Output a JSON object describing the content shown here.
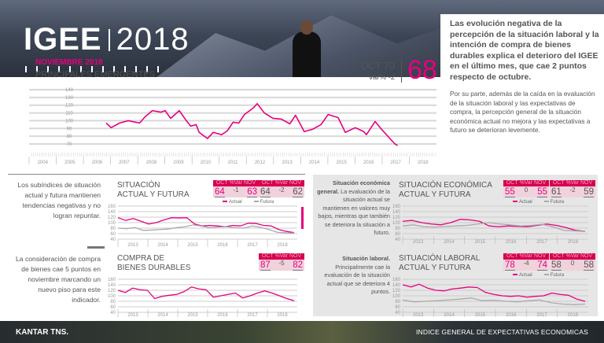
{
  "header": {
    "brand": "IGEE",
    "year": "2018"
  },
  "side": {
    "lead": "Las evolución negativa de la percepción de la situación laboral y la intención de compra de bienes durables explica el deterioro del IGEE en el último mes, que cae 2 puntos respecto de octubre.",
    "body": "Por su parte, además de la caída en la evaluación de la situación laboral y las expectativas de compra, la percepción general de la situación económica actual no mejora y las expectativas a futuro se deterioran levemente."
  },
  "main": {
    "month": "NOVIEMBRE 2018",
    "title": "PRINCIPALES EMERGENTES",
    "oct": "OCT 70",
    "var": "Var% -2",
    "value": "68"
  },
  "accent": "#e6007e",
  "chart_data": [
    {
      "id": "main",
      "type": "line",
      "title": "PRINCIPALES EMERGENTES",
      "ylim": [
        70,
        140
      ],
      "yticks": [
        140,
        130,
        120,
        110,
        100,
        90,
        80,
        70
      ],
      "xlim": [
        2004,
        2019
      ],
      "xticks": [
        "2004",
        "2005",
        "2006",
        "2007",
        "2008",
        "2009",
        "2010",
        "2011",
        "2012",
        "2013",
        "2014",
        "2015",
        "2016",
        "2017",
        "2018"
      ],
      "series": [
        {
          "name": "IGEE",
          "color": "#e6007e",
          "points": [
            [
              2006.84,
              97
            ],
            [
              2007.02,
              91
            ],
            [
              2007.33,
              97
            ],
            [
              2007.65,
              100
            ],
            [
              2008.07,
              97
            ],
            [
              2008.27,
              105
            ],
            [
              2008.54,
              113
            ],
            [
              2008.85,
              111
            ],
            [
              2009.01,
              113
            ],
            [
              2009.21,
              103
            ],
            [
              2009.53,
              113
            ],
            [
              2009.79,
              100
            ],
            [
              2009.95,
              93
            ],
            [
              2010.15,
              95
            ],
            [
              2010.26,
              85
            ],
            [
              2010.57,
              77
            ],
            [
              2010.78,
              85
            ],
            [
              2011.09,
              82
            ],
            [
              2011.3,
              87
            ],
            [
              2011.51,
              98
            ],
            [
              2011.72,
              97
            ],
            [
              2011.93,
              108
            ],
            [
              2012.24,
              116
            ],
            [
              2012.4,
              122
            ],
            [
              2012.66,
              110
            ],
            [
              2012.98,
              103
            ],
            [
              2013.29,
              102
            ],
            [
              2013.6,
              96
            ],
            [
              2013.81,
              107
            ],
            [
              2014.13,
              86
            ],
            [
              2014.44,
              89
            ],
            [
              2014.75,
              95
            ],
            [
              2015.01,
              108
            ],
            [
              2015.38,
              104
            ],
            [
              2015.64,
              85
            ],
            [
              2016.01,
              91
            ],
            [
              2016.32,
              86
            ],
            [
              2016.42,
              82
            ],
            [
              2016.74,
              99
            ],
            [
              2016.95,
              90
            ],
            [
              2017.26,
              78
            ],
            [
              2017.47,
              70
            ],
            [
              2017.57,
              68
            ]
          ]
        }
      ]
    },
    {
      "id": "actual-futura",
      "type": "line",
      "title": "SITUACIÓN ACTUAL Y FUTURA",
      "ylim": [
        40,
        160
      ],
      "yticks": [
        160,
        140,
        120,
        100,
        80,
        60,
        40
      ],
      "xticks": [
        "2013",
        "2014",
        "2015",
        "2016",
        "2017",
        "2018"
      ],
      "series": [
        {
          "name": "Actual",
          "color": "#e6007e",
          "values": [
            118,
            108,
            115,
            105,
            95,
            100,
            110,
            118,
            117,
            118,
            95,
            88,
            90,
            88,
            85,
            90,
            88,
            98,
            97,
            90,
            88,
            75,
            68,
            64
          ]
        },
        {
          "name": "Futura",
          "color": "#aaaaaa",
          "values": [
            80,
            78,
            82,
            72,
            73,
            75,
            77,
            82,
            85,
            92,
            87,
            82,
            84,
            85,
            82,
            80,
            88,
            83,
            75,
            65,
            63,
            62
          ]
        }
      ]
    },
    {
      "id": "compra",
      "type": "line",
      "title": "COMPRA DE BIENES DURABLES",
      "ylim": [
        40,
        160
      ],
      "yticks": [
        160,
        140,
        120,
        100,
        80,
        60,
        40
      ],
      "xticks": [
        "2013",
        "2014",
        "2015",
        "2016",
        "2017",
        "2018"
      ],
      "series": [
        {
          "name": "Compra",
          "color": "#e6007e",
          "values": [
            120,
            112,
            128,
            122,
            120,
            90,
            98,
            102,
            105,
            115,
            132,
            125,
            122,
            95,
            100,
            105,
            110,
            92,
            100,
            110,
            118,
            110,
            100,
            90,
            82
          ]
        }
      ]
    },
    {
      "id": "economica",
      "type": "line",
      "title": "SITUACIÓN ECONÓMICA ACTUAL Y FUTURA",
      "ylim": [
        40,
        160
      ],
      "yticks": [
        160,
        140,
        120,
        100,
        80,
        60,
        40
      ],
      "xticks": [
        "2013",
        "2014",
        "2015",
        "2016",
        "2017",
        "2018"
      ],
      "series": [
        {
          "name": "Actual",
          "color": "#e6007e",
          "values": [
            105,
            108,
            100,
            95,
            92,
            100,
            112,
            110,
            105,
            88,
            85,
            88,
            86,
            85,
            90,
            95,
            90,
            82,
            72,
            68
          ]
        },
        {
          "name": "Futura",
          "color": "#aaaaaa",
          "values": [
            88,
            92,
            85,
            84,
            86,
            88,
            90,
            95,
            100,
            95,
            92,
            88,
            90,
            94,
            85,
            72,
            70,
            68
          ]
        }
      ]
    },
    {
      "id": "laboral",
      "type": "line",
      "title": "SITUACIÓN LABORAL ACTUAL Y FUTURA",
      "ylim": [
        40,
        160
      ],
      "yticks": [
        160,
        140,
        120,
        100,
        80,
        60,
        40
      ],
      "xticks": [
        "2013",
        "2014",
        "2015",
        "2016",
        "2017",
        "2018"
      ],
      "series": [
        {
          "name": "Actual",
          "color": "#e6007e",
          "values": [
            140,
            132,
            142,
            128,
            120,
            118,
            125,
            128,
            132,
            130,
            112,
            105,
            100,
            98,
            100,
            95,
            98,
            100,
            110,
            105,
            102,
            88,
            80
          ]
        },
        {
          "name": "Futura",
          "color": "#aaaaaa",
          "values": [
            85,
            78,
            80,
            82,
            85,
            88,
            92,
            82,
            84,
            80,
            78,
            82,
            85,
            75,
            70,
            68,
            70
          ]
        }
      ]
    }
  ],
  "boxes": {
    "hd": "OCT %Var NOV",
    "af_actual": {
      "oct": "64",
      "var": "-1",
      "nov": "63"
    },
    "af_futura": {
      "oct": "64",
      "var": "-2",
      "nov": "62"
    },
    "compra": {
      "oct": "87",
      "var": "-5",
      "nov": "82"
    },
    "eco_actual": {
      "oct": "55",
      "var": "0",
      "nov": "55"
    },
    "eco_futura": {
      "oct": "61",
      "var": "-2",
      "nov": "59"
    },
    "lab_actual": {
      "oct": "78",
      "var": "-4",
      "nov": "74"
    },
    "lab_futura": {
      "oct": "58",
      "var": "0",
      "nov": "58"
    }
  },
  "legend": {
    "actual": "Actual",
    "futura": "Futura"
  },
  "sections": {
    "af": {
      "title1": "SITUACIÓN",
      "title2": "ACTUAL Y FUTURA",
      "text": "Los subíndices de situación actual y futura mantienen tendencias negativas y no logran repuntar."
    },
    "compra": {
      "title1": "COMPRA DE",
      "title2": "BIENES DURABLES",
      "text": "La consideración de compra de bienes cae 5 puntos en noviembre marcando un nuevo piso para este indicador."
    },
    "eco": {
      "title1": "SITUACIÓN ECONÓMICA",
      "title2": "ACTUAL Y FUTURA",
      "bold": "Situación económica general.",
      "text": " La evaluación de la situación actual se mantienen en valores muy bajos, mientras que también se deteriora la situación a futuro."
    },
    "lab": {
      "title1": "SITUACIÓN LABORAL",
      "title2": "ACTUAL Y FUTURA",
      "bold": "Situación laboral.",
      "text": " Principalmente cae la evaluación de la situación actual que se deteriora 4 puntos."
    }
  },
  "footer": {
    "brand": "KANTAR TNS.",
    "tagline": "INDICE GENERAL DE EXPECTATIVAS ECONOMICAS"
  }
}
